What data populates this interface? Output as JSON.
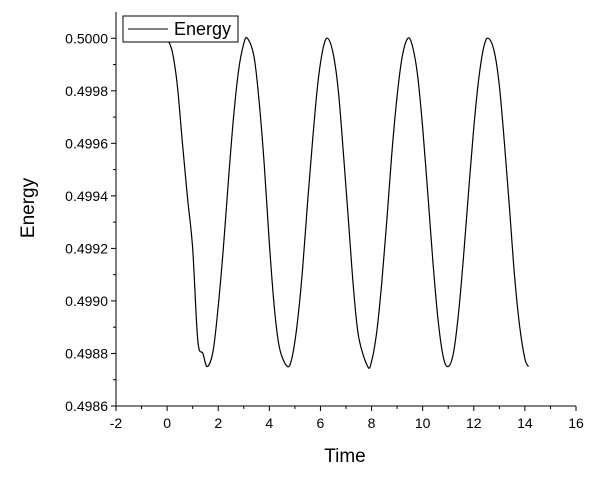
{
  "chart_data": {
    "type": "line",
    "xlabel": "Time",
    "ylabel": "Energy",
    "xlim": [
      -2,
      16
    ],
    "ylim": [
      0.4986,
      0.5001
    ],
    "xticks": [
      -2,
      0,
      2,
      4,
      6,
      8,
      10,
      12,
      14,
      16
    ],
    "xtick_labels": [
      "-2",
      "0",
      "2",
      "4",
      "6",
      "8",
      "10",
      "12",
      "14",
      "16"
    ],
    "yticks": [
      0.4986,
      0.4988,
      0.499,
      0.4992,
      0.4994,
      0.4996,
      0.4998,
      0.5
    ],
    "ytick_labels": [
      "0.4986",
      "0.4988",
      "0.4990",
      "0.4992",
      "0.4994",
      "0.4996",
      "0.4998",
      "0.5000"
    ],
    "grid": false,
    "legend_position": "top-left",
    "series": [
      {
        "name": "Energy",
        "color": "#000000",
        "x": [
          0,
          0.2,
          0.4,
          0.6,
          0.8,
          1.0,
          1.2,
          1.4,
          1.57,
          1.8,
          2.0,
          2.2,
          2.4,
          2.6,
          2.8,
          3.0,
          3.14,
          3.4,
          3.6,
          3.8,
          4.0,
          4.2,
          4.4,
          4.71,
          4.9,
          5.1,
          5.3,
          5.5,
          5.7,
          5.9,
          6.1,
          6.28,
          6.5,
          6.7,
          6.9,
          7.1,
          7.3,
          7.5,
          7.85,
          8.0,
          8.2,
          8.4,
          8.6,
          8.8,
          9.0,
          9.2,
          9.42,
          9.6,
          9.8,
          10.0,
          10.2,
          10.4,
          10.6,
          10.8,
          10.99,
          11.2,
          11.4,
          11.6,
          11.8,
          12.0,
          12.2,
          12.4,
          12.57,
          12.8,
          13.0,
          13.2,
          13.4,
          13.6,
          13.8,
          14.0,
          14.14
        ],
        "y": [
          0.5,
          0.49995,
          0.49982,
          0.4996,
          0.49939,
          0.4992,
          0.49885,
          0.4988,
          0.49875,
          0.49881,
          0.49898,
          0.4992,
          0.49946,
          0.4997,
          0.49988,
          0.49998,
          0.5,
          0.49993,
          0.49976,
          0.49952,
          0.49922,
          0.49897,
          0.49882,
          0.49875,
          0.49879,
          0.49892,
          0.49912,
          0.49938,
          0.49962,
          0.49983,
          0.49996,
          0.5,
          0.49994,
          0.4998,
          0.49956,
          0.4993,
          0.49904,
          0.49886,
          0.49875,
          0.49877,
          0.49888,
          0.49907,
          0.49931,
          0.49957,
          0.49978,
          0.49993,
          0.5,
          0.49997,
          0.49986,
          0.49966,
          0.49941,
          0.49915,
          0.49893,
          0.49879,
          0.49875,
          0.4988,
          0.49895,
          0.49917,
          0.49942,
          0.49966,
          0.49985,
          0.49997,
          0.5,
          0.49995,
          0.49982,
          0.4996,
          0.49935,
          0.49909,
          0.4989,
          0.49878,
          0.49875
        ]
      }
    ]
  }
}
